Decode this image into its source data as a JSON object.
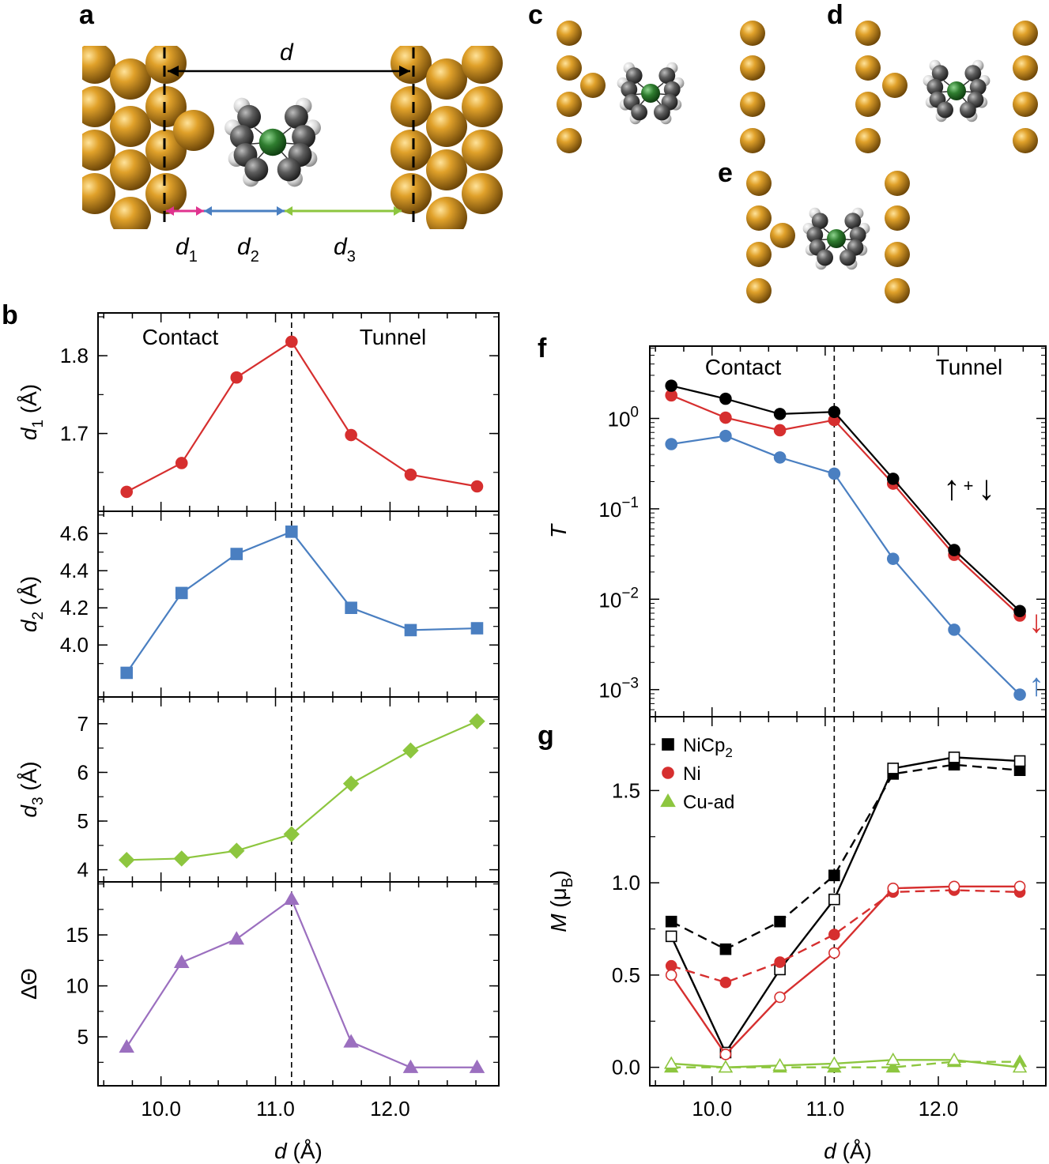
{
  "panel_letters": {
    "a": "a",
    "b": "b",
    "c": "c",
    "d": "d",
    "e": "e",
    "f": "f",
    "g": "g"
  },
  "schematic": {
    "d_label": "d",
    "d1_label": "d",
    "d1_sub": "1",
    "d2_label": "d",
    "d2_sub": "2",
    "d3_label": "d",
    "d3_sub": "3"
  },
  "colors": {
    "red": "#d62f2f",
    "blue": "#4a7fc1",
    "green": "#8dc63f",
    "purple": "#9b6fbf",
    "black": "#000000",
    "gold": "#b8860b",
    "nickel": "#2e7d32",
    "carbon": "#555555",
    "hydrogen": "#e0e0e0"
  },
  "chart_data": [
    {
      "id": "b1",
      "type": "line",
      "ylabel": "d",
      "ylabel_sub": "1",
      "ylabel_unit": " (Å)",
      "x": [
        9.7,
        10.18,
        10.66,
        11.14,
        11.66,
        12.18,
        12.76
      ],
      "values": [
        1.625,
        1.662,
        1.772,
        1.818,
        1.698,
        1.647,
        1.632
      ],
      "ylim": [
        1.6,
        1.855
      ],
      "yticks": [
        "1.7",
        "1.8"
      ],
      "xlim": [
        9.45,
        12.95
      ],
      "regions": [
        "Contact",
        "Tunnel"
      ],
      "divider_x": 11.14,
      "marker": "circle",
      "color": "#d62f2f"
    },
    {
      "id": "b2",
      "type": "line",
      "ylabel": "d",
      "ylabel_sub": "2",
      "ylabel_unit": " (Å)",
      "x": [
        9.7,
        10.18,
        10.66,
        11.14,
        11.66,
        12.18,
        12.76
      ],
      "values": [
        3.85,
        4.28,
        4.49,
        4.61,
        4.2,
        4.08,
        4.09
      ],
      "ylim": [
        3.72,
        4.72
      ],
      "yticks": [
        "4.0",
        "4.2",
        "4.4",
        "4.6"
      ],
      "xlim": [
        9.45,
        12.95
      ],
      "divider_x": 11.14,
      "marker": "square",
      "color": "#4a7fc1"
    },
    {
      "id": "b3",
      "type": "line",
      "ylabel": "d",
      "ylabel_sub": "3",
      "ylabel_unit": " (Å)",
      "x": [
        9.7,
        10.18,
        10.66,
        11.14,
        11.66,
        12.18,
        12.76
      ],
      "values": [
        4.2,
        4.23,
        4.39,
        4.73,
        5.77,
        6.45,
        7.05
      ],
      "ylim": [
        3.75,
        7.55
      ],
      "yticks": [
        "4",
        "5",
        "6",
        "7"
      ],
      "xlim": [
        9.45,
        12.95
      ],
      "divider_x": 11.14,
      "marker": "diamond",
      "color": "#8dc63f"
    },
    {
      "id": "b4",
      "type": "line",
      "ylabel": "ΔΘ",
      "x": [
        9.7,
        10.18,
        10.66,
        11.14,
        11.66,
        12.18,
        12.76
      ],
      "values": [
        4.0,
        12.3,
        14.6,
        18.5,
        4.5,
        2.0,
        2.0
      ],
      "ylim": [
        0.2,
        20.2
      ],
      "yticks": [
        "5",
        "10",
        "15"
      ],
      "xlim": [
        9.45,
        12.95
      ],
      "divider_x": 11.14,
      "xticks": [
        "10.0",
        "11.0",
        "12.0"
      ],
      "xlabel": "d",
      "xlabel_unit": " (Å)",
      "marker": "triangle",
      "color": "#9b6fbf"
    },
    {
      "id": "f",
      "type": "line",
      "yscale": "log",
      "ylabel": "T",
      "x": [
        9.64,
        10.12,
        10.6,
        11.08,
        11.6,
        12.14,
        12.72
      ],
      "series": [
        {
          "name": "total",
          "color": "#000000",
          "values": [
            2.3,
            1.65,
            1.12,
            1.18,
            0.215,
            0.035,
            0.0074
          ]
        },
        {
          "name": "spin down",
          "color": "#d62f2f",
          "values": [
            1.8,
            1.02,
            0.74,
            0.96,
            0.19,
            0.031,
            0.0066
          ]
        },
        {
          "name": "spin up",
          "color": "#4a7fc1",
          "values": [
            0.52,
            0.64,
            0.37,
            0.245,
            0.028,
            0.0046,
            0.00088
          ]
        }
      ],
      "ylim_log10": [
        -3.3,
        0.8
      ],
      "yticks": [
        {
          "base": "10",
          "exp": "0"
        },
        {
          "base": "10",
          "exp": "−1"
        },
        {
          "base": "10",
          "exp": "−2"
        },
        {
          "base": "10",
          "exp": "−3"
        }
      ],
      "regions": [
        "Contact",
        "Tunnel"
      ],
      "divider_x": 11.08,
      "xlim": [
        9.45,
        12.95
      ],
      "annotations": {
        "up": "↑",
        "plus": "+",
        "down": "↓"
      }
    },
    {
      "id": "g",
      "type": "line",
      "ylabel": "M",
      "ylabel_unit": " (μ",
      "ylabel_sub": "B",
      "ylabel_close": ")",
      "x": [
        9.64,
        10.12,
        10.6,
        11.08,
        11.6,
        12.14,
        12.72
      ],
      "series": [
        {
          "name": "NiCp2 filled",
          "color": "#000000",
          "style": "dashed",
          "marker": "square",
          "fill": true,
          "values": [
            0.79,
            0.64,
            0.79,
            1.04,
            1.59,
            1.64,
            1.61
          ]
        },
        {
          "name": "NiCp2 open",
          "color": "#000000",
          "style": "solid",
          "marker": "square",
          "fill": false,
          "values": [
            0.71,
            0.08,
            0.53,
            0.91,
            1.62,
            1.68,
            1.66
          ]
        },
        {
          "name": "Ni filled",
          "color": "#d62f2f",
          "style": "dashed",
          "marker": "circle",
          "fill": true,
          "values": [
            0.55,
            0.46,
            0.57,
            0.72,
            0.95,
            0.96,
            0.95
          ]
        },
        {
          "name": "Ni open",
          "color": "#d62f2f",
          "style": "solid",
          "marker": "circle",
          "fill": false,
          "values": [
            0.5,
            0.07,
            0.38,
            0.62,
            0.97,
            0.98,
            0.98
          ]
        },
        {
          "name": "Cu-ad filled",
          "color": "#8dc63f",
          "style": "dashed",
          "marker": "triangle",
          "fill": true,
          "values": [
            0.0,
            0.0,
            0.0,
            0.0,
            0.0,
            0.03,
            0.03
          ]
        },
        {
          "name": "Cu-ad open",
          "color": "#8dc63f",
          "style": "solid",
          "marker": "triangle",
          "fill": false,
          "values": [
            0.02,
            0.0,
            0.01,
            0.02,
            0.04,
            0.04,
            0.0
          ]
        }
      ],
      "ylim": [
        -0.1,
        1.9
      ],
      "yticks": [
        "0.0",
        "0.5",
        "1.0",
        "1.5"
      ],
      "xlim": [
        9.45,
        12.95
      ],
      "divider_x": 11.08,
      "xticks": [
        "10.0",
        "11.0",
        "12.0"
      ],
      "xlabel": "d",
      "xlabel_unit": " (Å)",
      "legend": [
        {
          "label": "NiCp",
          "sub": "2",
          "marker": "square",
          "color": "#000000"
        },
        {
          "label": "Ni",
          "marker": "circle",
          "color": "#d62f2f"
        },
        {
          "label": "Cu-ad",
          "marker": "triangle",
          "color": "#8dc63f"
        }
      ],
      "legend_position": "top-left"
    }
  ]
}
